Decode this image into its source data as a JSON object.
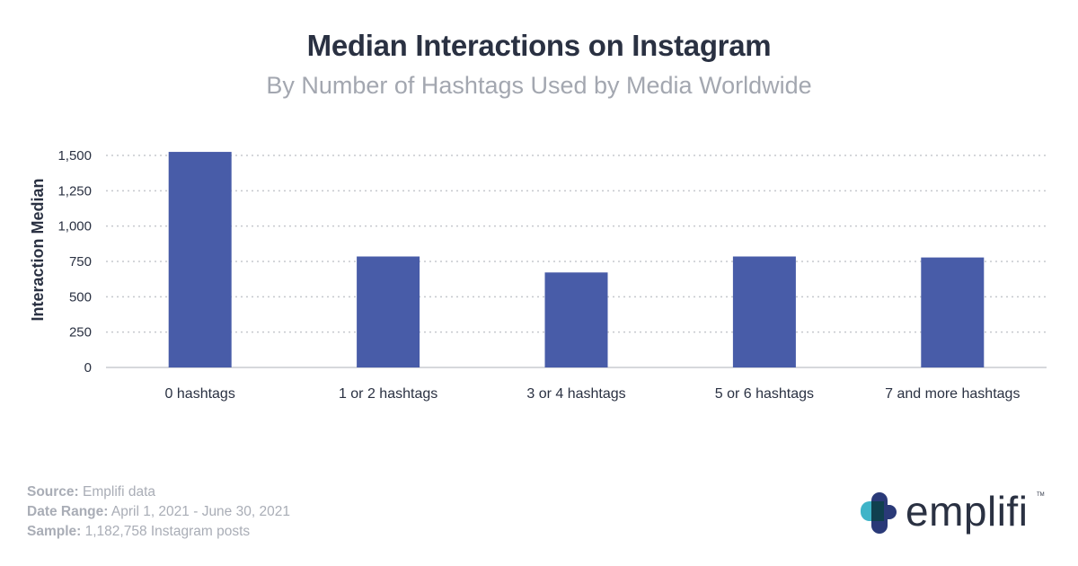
{
  "header": {
    "title": "Median Interactions on Instagram",
    "subtitle": "By Number of Hashtags Used by Media Worldwide"
  },
  "chart_data": {
    "type": "bar",
    "title": "Median Interactions on Instagram",
    "subtitle": "By Number of Hashtags Used by Media Worldwide",
    "xlabel": "",
    "ylabel": "Interaction Median",
    "categories": [
      "0 hashtags",
      "1 or 2 hashtags",
      "3 or 4 hashtags",
      "5 or 6 hashtags",
      "7 and more hashtags"
    ],
    "values": [
      1525,
      785,
      672,
      785,
      778
    ],
    "ylim": [
      0,
      1500
    ],
    "yticks": [
      0,
      250,
      500,
      750,
      1000,
      1250,
      1500
    ],
    "ytick_labels": [
      "0",
      "250",
      "500",
      "750",
      "1,000",
      "1,250",
      "1,500"
    ],
    "grid": true,
    "bar_color": "#485ca8"
  },
  "footer": {
    "source_label": "Source:",
    "source_value": " Emplifi data",
    "date_label": "Date Range:",
    "date_value": " April 1, 2021 - June 30, 2021",
    "sample_label": "Sample:",
    "sample_value": " 1,182,758 Instagram posts"
  },
  "brand": {
    "name": "emplifi",
    "tm": "TM",
    "logo_icon": "emplifi-cross-icon"
  },
  "colors": {
    "title": "#2a3142",
    "subtitle": "#a3a7b0",
    "bar": "#485ca8",
    "logo_teal": "#3fb4c8",
    "logo_navy": "#2a3a78"
  }
}
